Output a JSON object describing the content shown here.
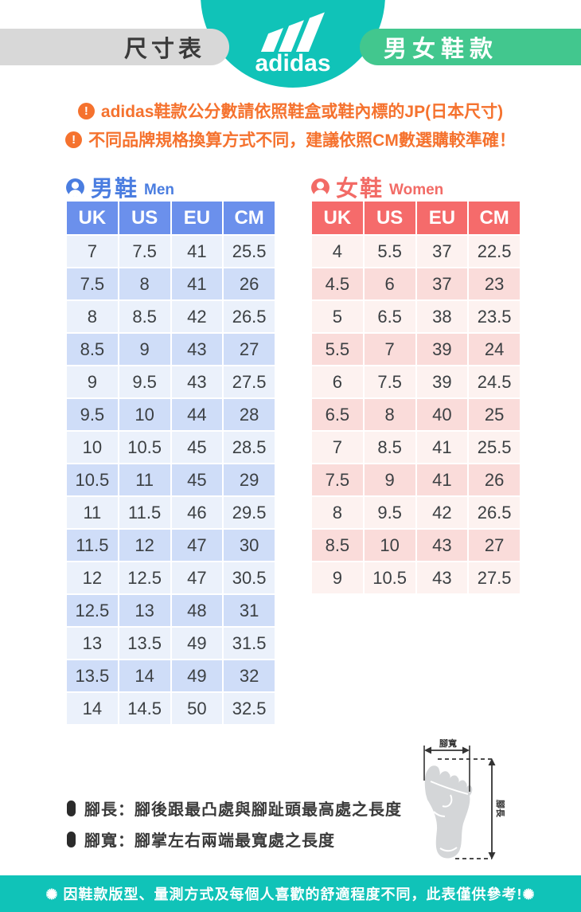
{
  "header": {
    "brand": "adidas",
    "left_pill": "尺寸表",
    "right_pill": "男女鞋款"
  },
  "notices": [
    "adidas鞋款公分數請依照鞋盒或鞋內標的JP(日本尺寸)",
    "不同品牌規格換算方式不同，建議依照CM數選購較準確！"
  ],
  "men": {
    "title_zh": "男鞋",
    "title_en": "Men",
    "columns": [
      "UK",
      "US",
      "EU",
      "CM"
    ],
    "rows": [
      [
        "7",
        "7.5",
        "41",
        "25.5"
      ],
      [
        "7.5",
        "8",
        "41",
        "26"
      ],
      [
        "8",
        "8.5",
        "42",
        "26.5"
      ],
      [
        "8.5",
        "9",
        "43",
        "27"
      ],
      [
        "9",
        "9.5",
        "43",
        "27.5"
      ],
      [
        "9.5",
        "10",
        "44",
        "28"
      ],
      [
        "10",
        "10.5",
        "45",
        "28.5"
      ],
      [
        "10.5",
        "11",
        "45",
        "29"
      ],
      [
        "11",
        "11.5",
        "46",
        "29.5"
      ],
      [
        "11.5",
        "12",
        "47",
        "30"
      ],
      [
        "12",
        "12.5",
        "47",
        "30.5"
      ],
      [
        "12.5",
        "13",
        "48",
        "31"
      ],
      [
        "13",
        "13.5",
        "49",
        "31.5"
      ],
      [
        "13.5",
        "14",
        "49",
        "32"
      ],
      [
        "14",
        "14.5",
        "50",
        "32.5"
      ]
    ]
  },
  "women": {
    "title_zh": "女鞋",
    "title_en": "Women",
    "columns": [
      "UK",
      "US",
      "EU",
      "CM"
    ],
    "rows": [
      [
        "4",
        "5.5",
        "37",
        "22.5"
      ],
      [
        "4.5",
        "6",
        "37",
        "23"
      ],
      [
        "5",
        "6.5",
        "38",
        "23.5"
      ],
      [
        "5.5",
        "7",
        "39",
        "24"
      ],
      [
        "6",
        "7.5",
        "39",
        "24.5"
      ],
      [
        "6.5",
        "8",
        "40",
        "25"
      ],
      [
        "7",
        "8.5",
        "41",
        "25.5"
      ],
      [
        "7.5",
        "9",
        "41",
        "26"
      ],
      [
        "8",
        "9.5",
        "42",
        "26.5"
      ],
      [
        "8.5",
        "10",
        "43",
        "27"
      ],
      [
        "9",
        "10.5",
        "43",
        "27.5"
      ]
    ]
  },
  "foot_diagram": {
    "width_label": "腳寬",
    "length_label": "腳長"
  },
  "notes": [
    "腳長：腳後跟最凸處與腳趾頭最高處之長度",
    "腳寬：腳掌左右兩端最寬處之長度"
  ],
  "footer": "✺ 因鞋款版型、量測方式及每個人喜歡的舒適程度不同，此表僅供參考!✺",
  "colors": {
    "teal": "#10C3B8",
    "green_pill": "#42C78E",
    "gray_pill": "#D8D8D8",
    "warning_orange": "#F5722E",
    "men_header_blue": "#6B90EC",
    "men_accent_blue": "#4A7DE0",
    "men_row_light": "#EBF1FB",
    "men_row_dark": "#CFDDF8",
    "women_header_coral": "#F56B6B",
    "women_accent_coral": "#F26B66",
    "women_row_light": "#FDF2F0",
    "women_row_dark": "#FADCDA"
  }
}
